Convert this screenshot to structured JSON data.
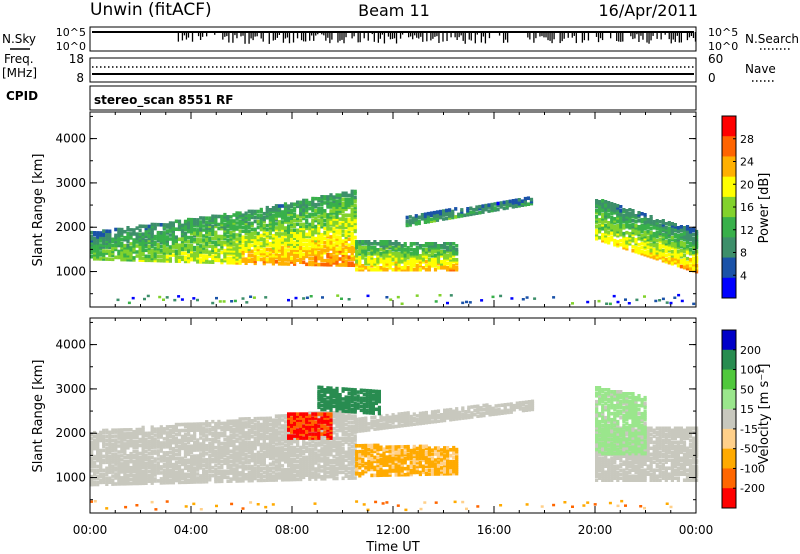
{
  "header": {
    "title": "Unwin (fitACF)",
    "beam": "Beam 11",
    "date": "16/Apr/2011"
  },
  "top_panels": {
    "nsky_label": "N.Sky",
    "nsky_ticks": [
      "10^5",
      "10^0"
    ],
    "nsearch_label": "N.Search",
    "nsearch_ticks": [
      "10^5",
      "10^0"
    ],
    "freq_label": "Freq.",
    "freq_unit": "[MHz]",
    "freq_ticks": [
      "18",
      "8"
    ],
    "nave_label": "Nave",
    "nave_ticks": [
      "60",
      "0"
    ],
    "cpid_label": "CPID",
    "cpid_value": "stereo_scan 8551 RF"
  },
  "colors": {
    "power_scale": [
      "#0000ff",
      "#1a52a8",
      "#3d8f6a",
      "#38b04a",
      "#82d22c",
      "#ffff00",
      "#ffb000",
      "#ff6400",
      "#ff0000"
    ],
    "velocity_scale": [
      "#ff0000",
      "#ff6600",
      "#ffaa00",
      "#ffd08a",
      "#c8c8be",
      "#9ae68c",
      "#50c83c",
      "#288c50",
      "#0000c8"
    ],
    "ground_scatter": "#c8c8be"
  },
  "chart_data": [
    {
      "type": "heatmap",
      "panel": "power",
      "ylabel": "Slant Range [km]",
      "ylim": [
        200,
        4600
      ],
      "yticks": [
        "4000",
        "3000",
        "2000",
        "1000"
      ],
      "xlim": [
        "00:00",
        "24:00"
      ],
      "colorbar_label": "Power [dB]",
      "colorbar_ticks": [
        "28",
        "24",
        "20",
        "16",
        "12",
        "8",
        "4"
      ],
      "bands": [
        {
          "t0": 0.0,
          "t1": 6.0,
          "r_start": [
            1250,
            1150
          ],
          "r_end": [
            1850,
            2300
          ],
          "level_start": [
            16,
            20
          ],
          "level_end": [
            8,
            12
          ]
        },
        {
          "t0": 6.0,
          "t1": 10.5,
          "r_start": [
            1150,
            1100
          ],
          "r_end": [
            2300,
            2800
          ],
          "level_start": [
            24,
            26
          ],
          "level_end": [
            10,
            12
          ]
        },
        {
          "t0": 10.5,
          "t1": 14.5,
          "r_start": [
            1000,
            1000
          ],
          "r_end": [
            1650,
            1600
          ],
          "level_start": [
            22,
            24
          ],
          "level_end": [
            12,
            10
          ]
        },
        {
          "t0": 12.5,
          "t1": 17.5,
          "r_start": [
            2000,
            2500
          ],
          "r_end": [
            2200,
            2650
          ],
          "level_start": [
            14,
            12
          ],
          "level_end": [
            8,
            6
          ]
        },
        {
          "t0": 20.0,
          "t1": 24.0,
          "r_start": [
            1700,
            950
          ],
          "r_end": [
            2600,
            1900
          ],
          "level_start": [
            20,
            24
          ],
          "level_end": [
            10,
            8
          ]
        }
      ]
    },
    {
      "type": "heatmap",
      "panel": "velocity",
      "xlabel": "Time UT",
      "ylabel": "Slant Range [km]",
      "ylim": [
        200,
        4600
      ],
      "yticks": [
        "4000",
        "3000",
        "2000",
        "1000"
      ],
      "xticks": [
        "00:00",
        "04:00",
        "08:00",
        "12:00",
        "16:00",
        "20:00",
        "00:00"
      ],
      "colorbar_label": "Velocity [m s⁻¹]",
      "colorbar_ticks": [
        "200",
        "100",
        "50",
        "15",
        "-15",
        "-50",
        "-100",
        "-200"
      ],
      "bands": [
        {
          "t0": 0.0,
          "t1": 10.5,
          "r_start": [
            800,
            950
          ],
          "r_end": [
            2000,
            2500
          ],
          "velocity": 0
        },
        {
          "t0": 10.5,
          "t1": 17.5,
          "r_start": [
            2000,
            2500
          ],
          "r_end": [
            2300,
            2700
          ],
          "velocity": 0
        },
        {
          "t0": 10.5,
          "t1": 14.5,
          "r_start": [
            1000,
            1050
          ],
          "r_end": [
            1700,
            1650
          ],
          "velocity": -60
        },
        {
          "t0": 7.8,
          "t1": 9.5,
          "r_start": [
            1850,
            1850
          ],
          "r_end": [
            2400,
            2400
          ],
          "velocity": -200
        },
        {
          "t0": 9.0,
          "t1": 11.5,
          "r_start": [
            2500,
            2400
          ],
          "r_end": [
            3000,
            2900
          ],
          "velocity": 150
        },
        {
          "t0": 20.0,
          "t1": 24.0,
          "r_start": [
            900,
            900
          ],
          "r_end": [
            2100,
            2100
          ],
          "velocity": 0
        },
        {
          "t0": 20.0,
          "t1": 22.0,
          "r_start": [
            1500,
            1500
          ],
          "r_end": [
            3000,
            2800
          ],
          "velocity": 30
        }
      ]
    }
  ]
}
